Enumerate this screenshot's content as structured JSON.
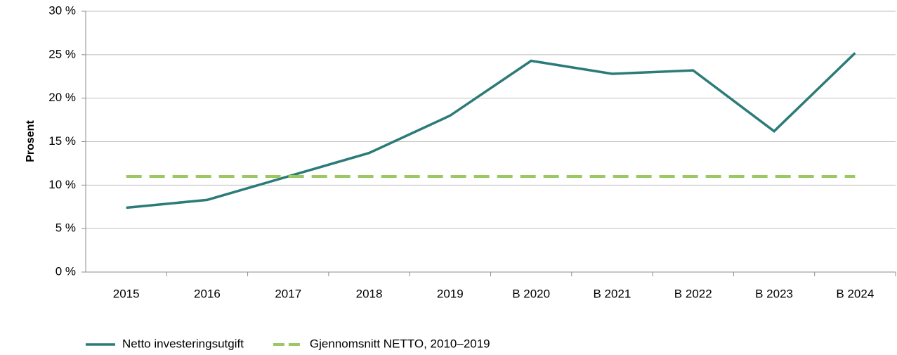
{
  "chart_data": {
    "type": "line",
    "y_label": "Prosent",
    "categories": [
      "2015",
      "2016",
      "2017",
      "2018",
      "2019",
      "B 2020",
      "B 2021",
      "B 2022",
      "B 2023",
      "B 2024"
    ],
    "series": [
      {
        "name": "Netto investeringsutgift",
        "color": "#2b7b78",
        "dash": false,
        "values": [
          7.4,
          8.3,
          11.0,
          13.7,
          18.0,
          24.3,
          22.8,
          23.2,
          16.2,
          25.2
        ]
      },
      {
        "name": "Gjennomsnitt NETTO, 2010–2019",
        "color": "#9cc864",
        "dash": true,
        "values": [
          11.0,
          11.0,
          11.0,
          11.0,
          11.0,
          11.0,
          11.0,
          11.0,
          11.0,
          11.0
        ]
      }
    ],
    "ylim": [
      0,
      30
    ],
    "yticks": [
      {
        "value": 0,
        "label": "0 %"
      },
      {
        "value": 5,
        "label": "5 %"
      },
      {
        "value": 10,
        "label": "10 %"
      },
      {
        "value": 15,
        "label": "15 %"
      },
      {
        "value": 20,
        "label": "20 %"
      },
      {
        "value": 25,
        "label": "25 %"
      },
      {
        "value": 30,
        "label": "30 %"
      }
    ],
    "grid": true,
    "legend": "bottom"
  }
}
